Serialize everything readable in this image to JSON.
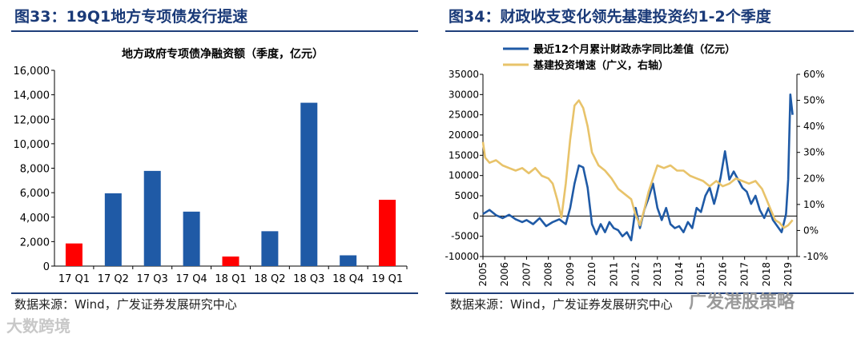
{
  "left_figure": {
    "title": "图33：19Q1地方专项债发行提速",
    "source": "数据来源：Wind，广发证券发展研究中心"
  },
  "right_figure": {
    "title": "图34：财政收支变化领先基建投资约1-2个季度",
    "source": "数据来源：Wind，广发证券发展研究中心"
  },
  "watermarks": {
    "left": "大数跨境",
    "right": "广发港股策略"
  },
  "colors": {
    "bar_blue": "#1f5aa6",
    "bar_red": "#ff0000",
    "line_blue": "#1f5aa6",
    "line_gold": "#e8c36a"
  },
  "chart_data": [
    {
      "type": "bar",
      "title": "地方政府专项债净融资额（季度，亿元）",
      "categories": [
        "17 Q1",
        "17 Q2",
        "17 Q3",
        "17 Q4",
        "18 Q1",
        "18 Q2",
        "18 Q3",
        "18 Q4",
        "19 Q1"
      ],
      "values": [
        1850,
        5950,
        7780,
        4450,
        780,
        2850,
        13350,
        880,
        5420
      ],
      "highlight": [
        true,
        false,
        false,
        false,
        true,
        false,
        false,
        false,
        true
      ],
      "ylim": [
        0,
        16000
      ],
      "yticks": [
        0,
        2000,
        4000,
        6000,
        8000,
        10000,
        12000,
        14000,
        16000
      ],
      "ytick_labels": [
        "0",
        "2,000",
        "4,000",
        "6,000",
        "8,000",
        "10,000",
        "12,000",
        "14,000",
        "16,000"
      ]
    },
    {
      "type": "line",
      "legend": [
        {
          "name": "最近12个月累计财政赤字同比差值（亿元）",
          "color_key": "line_blue"
        },
        {
          "name": "基建投资增速（广义，右轴）",
          "color_key": "line_gold"
        }
      ],
      "x_range": [
        2005,
        2019.4
      ],
      "x_tick_labels": [
        "2005",
        "2006",
        "2007",
        "2008",
        "2009",
        "2010",
        "2011",
        "2012",
        "2013",
        "2014",
        "2015",
        "2016",
        "2017",
        "2018",
        "2019"
      ],
      "ylim_left": [
        -10000,
        35000
      ],
      "yticks_left": [
        "-10000",
        "-5000",
        "0",
        "5000",
        "10000",
        "15000",
        "20000",
        "25000",
        "30000",
        "35000"
      ],
      "ylim_right": [
        -10,
        60
      ],
      "yticks_right": [
        "-10%",
        "0%",
        "10%",
        "20%",
        "30%",
        "40%",
        "50%",
        "60%"
      ],
      "series": [
        {
          "name": "最近12个月累计财政赤字同比差值（亿元）",
          "axis": "left",
          "x": [
            2005.0,
            2005.3,
            2005.6,
            2005.9,
            2006.2,
            2006.5,
            2006.8,
            2007.0,
            2007.3,
            2007.6,
            2007.9,
            2008.2,
            2008.5,
            2008.8,
            2009.0,
            2009.2,
            2009.4,
            2009.6,
            2009.8,
            2010.0,
            2010.2,
            2010.4,
            2010.6,
            2010.8,
            2011.0,
            2011.2,
            2011.4,
            2011.6,
            2011.8,
            2012.0,
            2012.2,
            2012.4,
            2012.6,
            2012.8,
            2013.0,
            2013.2,
            2013.4,
            2013.6,
            2013.8,
            2014.0,
            2014.2,
            2014.4,
            2014.6,
            2014.8,
            2015.0,
            2015.2,
            2015.4,
            2015.6,
            2015.7,
            2015.9,
            2016.1,
            2016.3,
            2016.5,
            2016.7,
            2016.9,
            2017.1,
            2017.3,
            2017.5,
            2017.7,
            2017.9,
            2018.1,
            2018.3,
            2018.5,
            2018.7,
            2018.9,
            2019.0,
            2019.1,
            2019.2
          ],
          "y": [
            500,
            1500,
            200,
            -500,
            300,
            -800,
            -1500,
            -1000,
            -2000,
            -500,
            -2500,
            -1500,
            -800,
            -2000,
            2000,
            8000,
            12500,
            12000,
            7000,
            -2000,
            -4500,
            -2000,
            -4000,
            -1500,
            -3000,
            -3500,
            -5000,
            -4000,
            -6000,
            2000,
            -3000,
            1500,
            4500,
            8000,
            2000,
            -1000,
            2000,
            -2000,
            -3000,
            -2500,
            -4000,
            -1500,
            -3000,
            2000,
            1000,
            5000,
            7000,
            3000,
            5000,
            9500,
            16000,
            9000,
            11000,
            9000,
            7000,
            6000,
            3000,
            5000,
            1500,
            -500,
            2000,
            -1000,
            -2500,
            -4000,
            500,
            9000,
            30000,
            25000
          ]
        },
        {
          "name": "基建投资增速（广义，右轴）",
          "axis": "right",
          "x": [
            2005.0,
            2005.1,
            2005.3,
            2005.6,
            2005.9,
            2006.2,
            2006.5,
            2006.8,
            2007.1,
            2007.4,
            2007.7,
            2008.0,
            2008.2,
            2008.4,
            2008.6,
            2008.8,
            2009.0,
            2009.2,
            2009.4,
            2009.6,
            2009.8,
            2010.0,
            2010.3,
            2010.6,
            2010.9,
            2011.2,
            2011.5,
            2011.8,
            2012.0,
            2012.2,
            2012.4,
            2012.6,
            2012.8,
            2013.0,
            2013.3,
            2013.6,
            2013.9,
            2014.2,
            2014.5,
            2014.8,
            2015.1,
            2015.4,
            2015.7,
            2016.0,
            2016.3,
            2016.6,
            2016.9,
            2017.2,
            2017.5,
            2017.8,
            2018.0,
            2018.2,
            2018.4,
            2018.6,
            2018.8,
            2019.0,
            2019.2
          ],
          "y": [
            34,
            28,
            26,
            27,
            25,
            24,
            23,
            24,
            22,
            24,
            21,
            20,
            18,
            12,
            5,
            18,
            35,
            48,
            50,
            47,
            40,
            30,
            25,
            23,
            20,
            16,
            14,
            12,
            6,
            2,
            8,
            15,
            20,
            25,
            24,
            25,
            23,
            23,
            21,
            20,
            19,
            17,
            19,
            17,
            18,
            20,
            19,
            18,
            19,
            16,
            12,
            8,
            4,
            3,
            1,
            2,
            4
          ]
        }
      ]
    }
  ]
}
